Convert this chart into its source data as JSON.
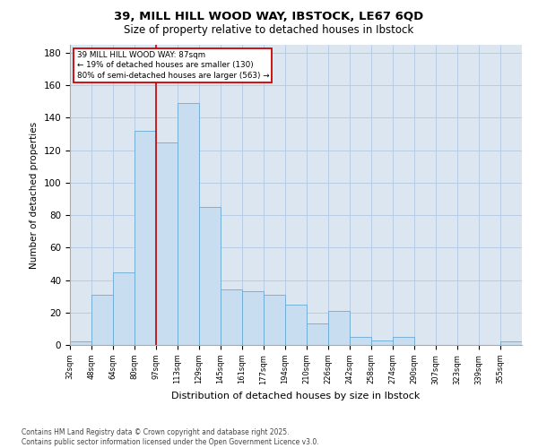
{
  "title_line1": "39, MILL HILL WOOD WAY, IBSTOCK, LE67 6QD",
  "title_line2": "Size of property relative to detached houses in Ibstock",
  "xlabel": "Distribution of detached houses by size in Ibstock",
  "ylabel": "Number of detached properties",
  "categories": [
    "32sqm",
    "48sqm",
    "64sqm",
    "80sqm",
    "97sqm",
    "113sqm",
    "129sqm",
    "145sqm",
    "161sqm",
    "177sqm",
    "194sqm",
    "210sqm",
    "226sqm",
    "242sqm",
    "258sqm",
    "274sqm",
    "290sqm",
    "307sqm",
    "323sqm",
    "339sqm",
    "355sqm"
  ],
  "values": [
    2,
    31,
    45,
    132,
    125,
    149,
    85,
    34,
    33,
    31,
    25,
    13,
    21,
    5,
    3,
    5,
    0,
    0,
    0,
    0,
    2
  ],
  "bar_color": "#c9ddf0",
  "bar_edge_color": "#6aaad4",
  "grid_color": "#b8cce4",
  "background_color": "#dce6f1",
  "annotation_text": "39 MILL HILL WOOD WAY: 87sqm\n← 19% of detached houses are smaller (130)\n80% of semi-detached houses are larger (563) →",
  "annotation_box_color": "#ffffff",
  "annotation_box_edge": "#cc0000",
  "vline_color": "#cc0000",
  "ylim": [
    0,
    185
  ],
  "yticks": [
    0,
    20,
    40,
    60,
    80,
    100,
    120,
    140,
    160,
    180
  ],
  "footer_text": "Contains HM Land Registry data © Crown copyright and database right 2025.\nContains public sector information licensed under the Open Government Licence v3.0.",
  "bin_edges": [
    24,
    40,
    56,
    72,
    88,
    104,
    120,
    136,
    152,
    168,
    184,
    200,
    216,
    232,
    248,
    264,
    280,
    296,
    312,
    328,
    344,
    360
  ],
  "vline_x": 88
}
